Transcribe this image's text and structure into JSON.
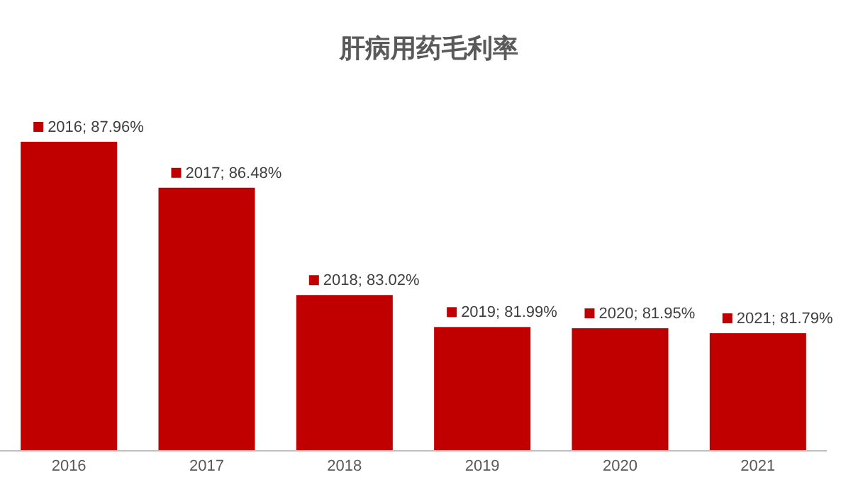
{
  "chart_data": {
    "type": "bar",
    "title": "肝病用药毛利率",
    "categories": [
      "2016",
      "2017",
      "2018",
      "2019",
      "2020",
      "2021"
    ],
    "values": [
      87.96,
      86.48,
      83.02,
      81.99,
      81.95,
      81.79
    ],
    "value_labels": [
      "2016; 87.96%",
      "2017; 86.48%",
      "2018; 83.02%",
      "2019; 81.99%",
      "2020; 81.95%",
      "2021; 81.79%"
    ],
    "color": "#c00000",
    "ylim": [
      78,
      87.96
    ],
    "tick_labels": "x"
  }
}
